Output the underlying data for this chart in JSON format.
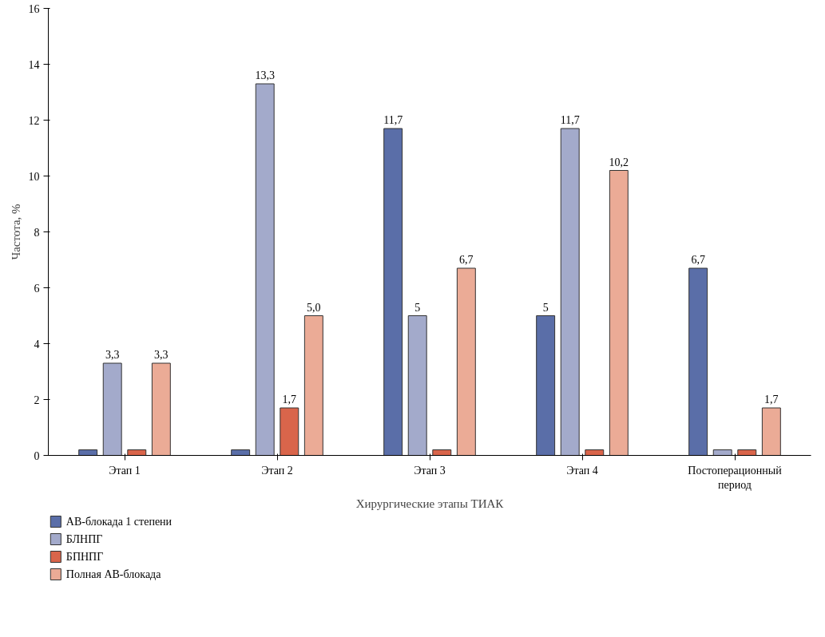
{
  "chart_data": {
    "type": "bar",
    "xlabel": "Хирургические этапы ТИАК",
    "ylabel": "Частота, %",
    "categories": [
      "Этап 1",
      "Этап 2",
      "Этап 3",
      "Этап 4",
      "Постоперационный\nпериод"
    ],
    "series": [
      {
        "name": "АВ-блокада 1 степени",
        "color": "#5a6ea8",
        "values": [
          0.2,
          0.2,
          11.7,
          5,
          6.7
        ],
        "value_labels": [
          null,
          null,
          "11,7",
          "5",
          "6,7"
        ]
      },
      {
        "name": "БЛНПГ",
        "color": "#a3aacb",
        "values": [
          3.3,
          13.3,
          5,
          11.7,
          0.2
        ],
        "value_labels": [
          "3,3",
          "13,3",
          "5",
          "11,7",
          null
        ]
      },
      {
        "name": "БПНПГ",
        "color": "#d9654b",
        "values": [
          0.2,
          1.7,
          0.2,
          0.2,
          0.2
        ],
        "value_labels": [
          null,
          "1,7",
          null,
          null,
          null
        ]
      },
      {
        "name": "Полная АВ-блокада",
        "color": "#ebab96",
        "values": [
          3.3,
          5.0,
          6.7,
          10.2,
          1.7
        ],
        "value_labels": [
          "3,3",
          "5,0",
          "6,7",
          "10,2",
          "1,7"
        ]
      }
    ],
    "ylim": [
      0,
      16
    ],
    "yticks": [
      0,
      2,
      4,
      6,
      8,
      10,
      12,
      14,
      16
    ],
    "grid": false,
    "legend": "bottom"
  }
}
